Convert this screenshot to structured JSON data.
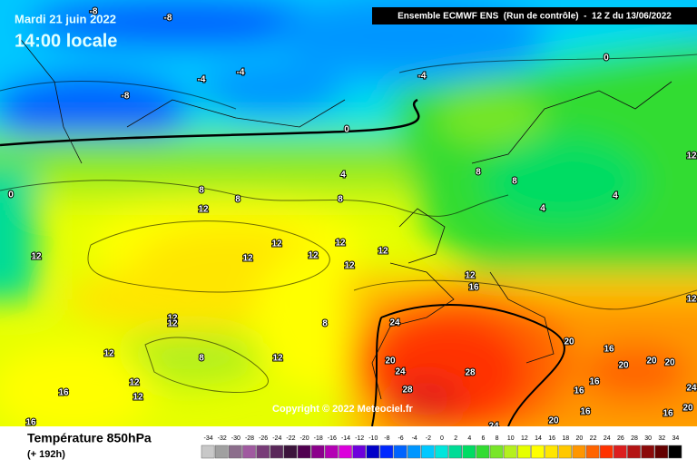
{
  "header": {
    "date": "Mardi 21 juin 2022",
    "time": "14:00 locale",
    "model": "Ensemble ECMWF ENS  (Run de contrôle)  -  12 Z du 13/06/2022"
  },
  "map": {
    "copyright": "Copyright © 2022 Meteociel.fr",
    "contour_labels": [
      -8,
      -8,
      -8,
      -4,
      -4,
      -4,
      0,
      0,
      0,
      4,
      8,
      8,
      8,
      8,
      8,
      12,
      12,
      12,
      12,
      12,
      12,
      12,
      12,
      12,
      16,
      12,
      4,
      4,
      12,
      12,
      12,
      8,
      12,
      8,
      12,
      12,
      12,
      16,
      16,
      24,
      20,
      24,
      28,
      28,
      20,
      16,
      20,
      20,
      20,
      16,
      16,
      16,
      20,
      16,
      24,
      20,
      24
    ]
  },
  "legend": {
    "title": "Température 850hPa",
    "lead": "(+ 192h)",
    "scale": [
      {
        "value": -34,
        "color": "#c8c8c8"
      },
      {
        "value": -32,
        "color": "#a0a0a0"
      },
      {
        "value": -30,
        "color": "#8c6e8c"
      },
      {
        "value": -28,
        "color": "#a05aa0"
      },
      {
        "value": -26,
        "color": "#783c78"
      },
      {
        "value": -24,
        "color": "#5a285a"
      },
      {
        "value": -22,
        "color": "#3c143c"
      },
      {
        "value": -20,
        "color": "#500050"
      },
      {
        "value": -18,
        "color": "#8c008c"
      },
      {
        "value": -16,
        "color": "#b400b4"
      },
      {
        "value": -14,
        "color": "#dc00dc"
      },
      {
        "value": -12,
        "color": "#6e00dc"
      },
      {
        "value": -10,
        "color": "#0000c8"
      },
      {
        "value": -8,
        "color": "#0028ff"
      },
      {
        "value": -6,
        "color": "#0064ff"
      },
      {
        "value": -4,
        "color": "#0096ff"
      },
      {
        "value": -2,
        "color": "#00c8ff"
      },
      {
        "value": 0,
        "color": "#00e6dc"
      },
      {
        "value": 2,
        "color": "#00dc96"
      },
      {
        "value": 4,
        "color": "#00dc64"
      },
      {
        "value": 6,
        "color": "#32dc32"
      },
      {
        "value": 8,
        "color": "#78e628"
      },
      {
        "value": 10,
        "color": "#b4f01e"
      },
      {
        "value": 12,
        "color": "#e6ff00"
      },
      {
        "value": 14,
        "color": "#ffff00"
      },
      {
        "value": 16,
        "color": "#ffe600"
      },
      {
        "value": 18,
        "color": "#ffc800"
      },
      {
        "value": 20,
        "color": "#ff9600"
      },
      {
        "value": 22,
        "color": "#ff6400"
      },
      {
        "value": 24,
        "color": "#ff3200"
      },
      {
        "value": 26,
        "color": "#dc1e1e"
      },
      {
        "value": 28,
        "color": "#b41414"
      },
      {
        "value": 30,
        "color": "#8c0a0a"
      },
      {
        "value": 32,
        "color": "#640000"
      },
      {
        "value": 34,
        "color": "#000000"
      }
    ]
  }
}
